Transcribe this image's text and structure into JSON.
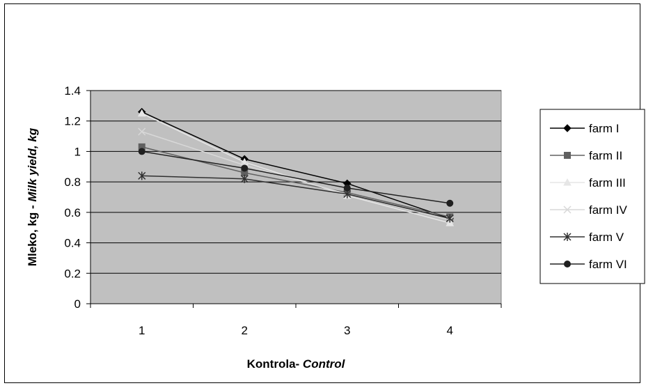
{
  "chart_data": {
    "type": "line",
    "title": "",
    "xlabel": {
      "plain": "Kontrola- ",
      "italic": "Control"
    },
    "ylabel": {
      "plain": "Mleko, kg - ",
      "italic": "Milk yield, kg"
    },
    "categories": [
      "1",
      "2",
      "3",
      "4"
    ],
    "ylim": [
      0,
      1.4
    ],
    "yticks": [
      "0",
      "0.2",
      "0.4",
      "0.6",
      "0.8",
      "1",
      "1.2",
      "1.4"
    ],
    "grid": "horizontal",
    "plot_background": "#c0c0c0",
    "legend_position": "right",
    "series": [
      {
        "name": "farm I",
        "values": [
          1.26,
          0.95,
          0.79,
          0.56
        ],
        "color": "#000000",
        "marker": "diamond"
      },
      {
        "name": "farm II",
        "values": [
          1.03,
          0.86,
          0.73,
          0.57
        ],
        "color": "#606060",
        "marker": "square"
      },
      {
        "name": "farm III",
        "values": [
          1.25,
          0.93,
          0.71,
          0.53
        ],
        "color": "#e6e6e6",
        "marker": "triangle"
      },
      {
        "name": "farm IV",
        "values": [
          1.13,
          0.91,
          0.72,
          0.55
        ],
        "color": "#d8d8d8",
        "marker": "x"
      },
      {
        "name": "farm V",
        "values": [
          0.84,
          0.82,
          0.72,
          0.56
        ],
        "color": "#303030",
        "marker": "star"
      },
      {
        "name": "farm VI",
        "values": [
          1.0,
          0.89,
          0.76,
          0.66
        ],
        "color": "#202020",
        "marker": "circle"
      }
    ]
  }
}
